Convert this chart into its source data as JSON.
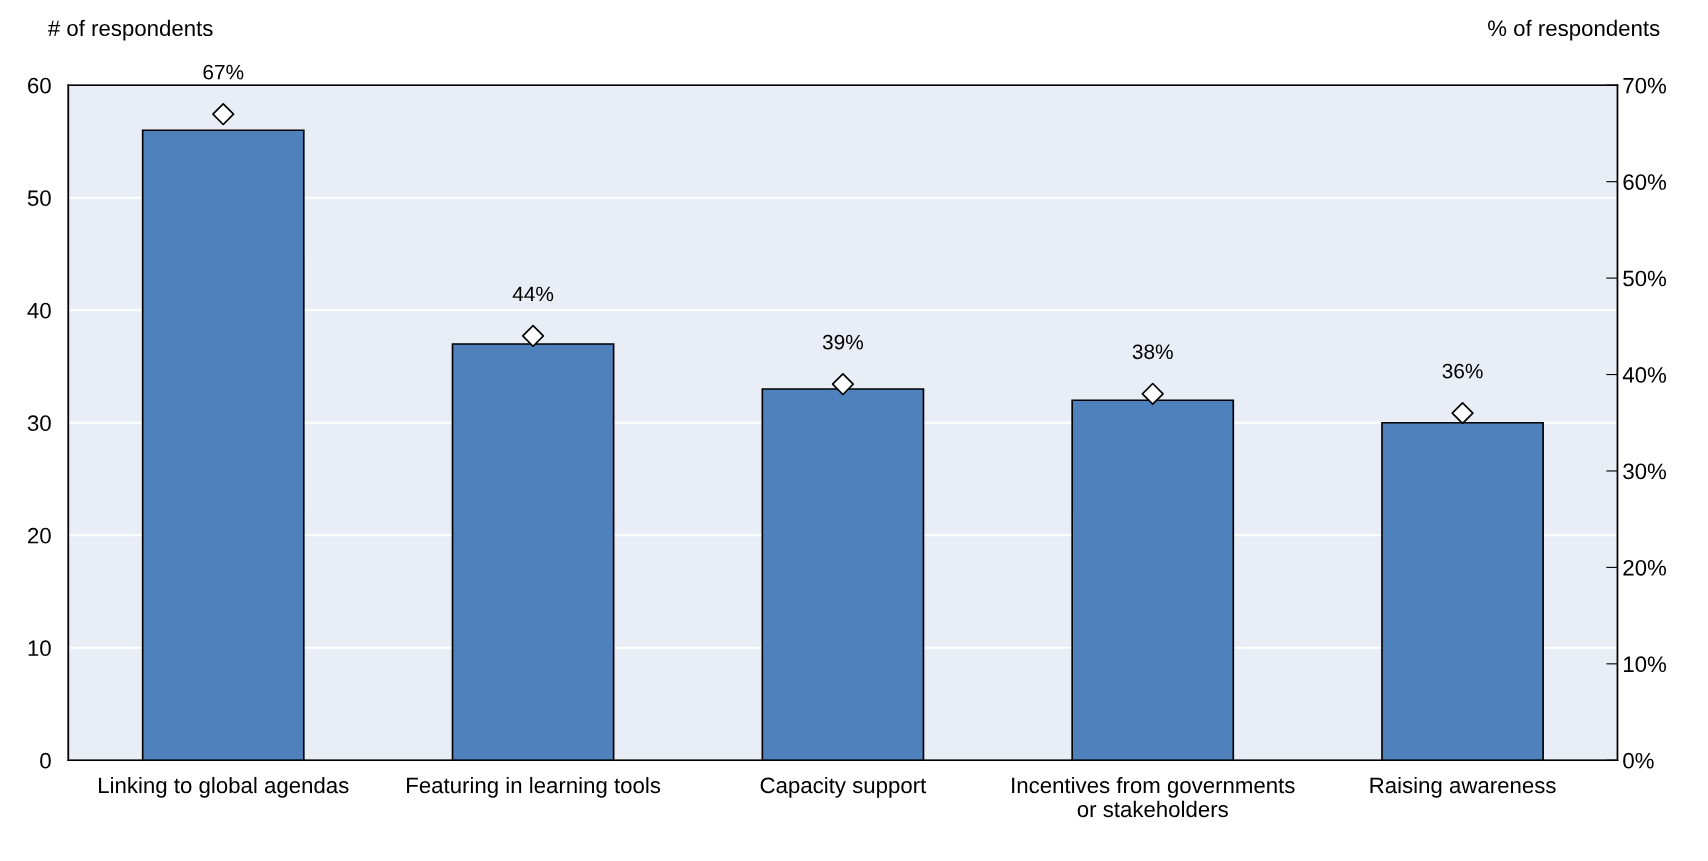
{
  "chart_data": {
    "type": "bar",
    "ylabel": "# of respondents",
    "y2label": "% of respondents",
    "categories": [
      "Linking to global agendas",
      "Featuring in learning tools",
      "Capacity support",
      "Incentives from governments\nor stakeholders",
      "Raising awareness"
    ],
    "series": [
      {
        "color": "#4f81bd",
        "values": [
          56,
          37,
          33,
          32,
          30
        ]
      },
      {
        "type": "scatter",
        "axis": "y2",
        "color": "#ffffff",
        "marker": "diamond",
        "values": [
          67,
          44,
          39,
          38,
          36
        ],
        "value_labels": [
          "67%",
          "44%",
          "39%",
          "38%",
          "36%"
        ]
      }
    ],
    "ylim": [
      0,
      60
    ],
    "yticks": [
      0,
      10,
      20,
      30,
      40,
      50,
      60
    ],
    "y2lim": [
      0,
      70
    ],
    "y2ticks": [
      {
        "value": 0,
        "label": "0%"
      },
      {
        "value": 10,
        "label": "10%"
      },
      {
        "value": 20,
        "label": "20%"
      },
      {
        "value": 30,
        "label": "30%"
      },
      {
        "value": 40,
        "label": "40%"
      },
      {
        "value": 50,
        "label": "50%"
      },
      {
        "value": 60,
        "label": "60%"
      },
      {
        "value": 70,
        "label": "70%"
      }
    ],
    "grid": "y"
  }
}
